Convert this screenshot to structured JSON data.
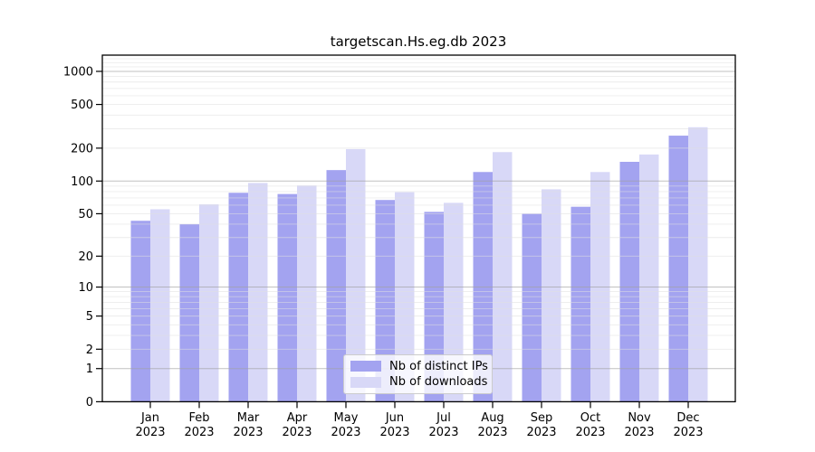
{
  "title": "targetscan.Hs.eg.db 2023",
  "legend": {
    "items": [
      {
        "label": "Nb of distinct IPs",
        "color": "#a3a3f0"
      },
      {
        "label": "Nb of downloads",
        "color": "#d8d8f7"
      }
    ]
  },
  "chart_data": {
    "type": "bar",
    "title": "targetscan.Hs.eg.db 2023",
    "categories": [
      "Jan 2023",
      "Feb 2023",
      "Mar 2023",
      "Apr 2023",
      "May 2023",
      "Jun 2023",
      "Jul 2023",
      "Aug 2023",
      "Sep 2023",
      "Oct 2023",
      "Nov 2023",
      "Dec 2023"
    ],
    "series": [
      {
        "name": "Nb of distinct IPs",
        "color": "#a3a3f0",
        "values": [
          43,
          40,
          78,
          76,
          126,
          67,
          52,
          121,
          50,
          58,
          150,
          260
        ]
      },
      {
        "name": "Nb of downloads",
        "color": "#d8d8f7",
        "values": [
          55,
          61,
          96,
          91,
          196,
          79,
          63,
          184,
          84,
          121,
          175,
          310
        ]
      }
    ],
    "xlabel": "",
    "ylabel": "",
    "y_scale": "log10(1+x)",
    "y_ticks": [
      0,
      1,
      2,
      5,
      10,
      20,
      50,
      100,
      200,
      500,
      1000
    ],
    "major_gridlines": [
      1,
      10,
      100,
      1000
    ],
    "ylim": [
      0,
      1400
    ],
    "grid": true,
    "legend_position": "lower center"
  }
}
